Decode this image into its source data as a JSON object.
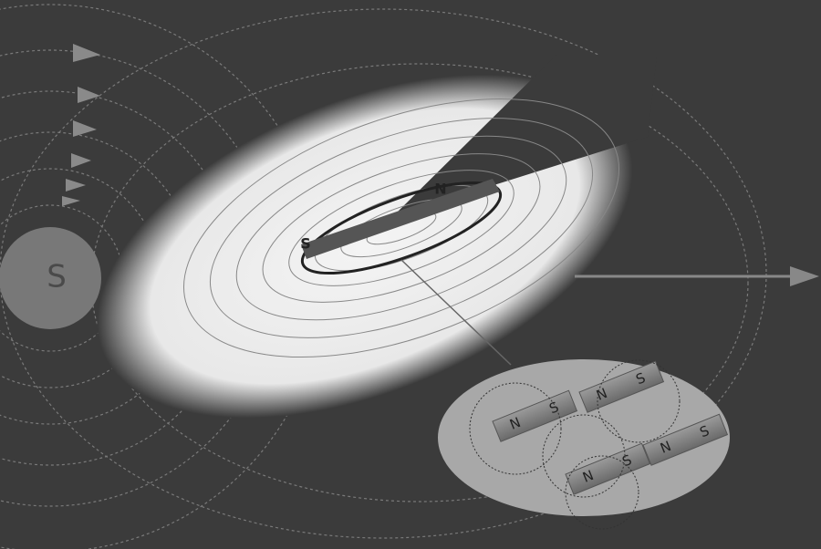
{
  "labels": {
    "sun": "S",
    "magnet_north": "N",
    "magnet_south": "S"
  },
  "inset": {
    "magnets": [
      {
        "north": "N",
        "south": "S"
      },
      {
        "north": "N",
        "south": "S"
      },
      {
        "north": "N",
        "south": "S"
      },
      {
        "north": "N",
        "south": "S"
      }
    ]
  }
}
